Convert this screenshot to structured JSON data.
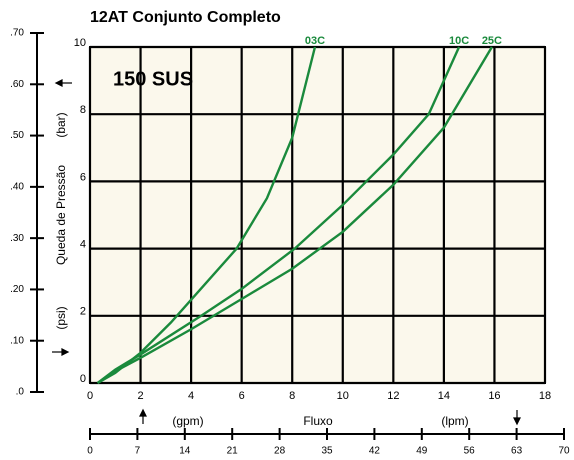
{
  "chart_data": {
    "type": "line",
    "title": "12AT Conjunto Completo",
    "annotation": "150 SUS",
    "ylabel": "Queda de Pressão",
    "y_unit_psi": "(psi)",
    "y_unit_bar": "(bar)",
    "xlabel": "Fluxo",
    "x_unit_gpm": "(gpm)",
    "x_unit_lpm": "(lpm)",
    "xlim": [
      0,
      18
    ],
    "xticks": [
      0,
      2,
      4,
      6,
      8,
      10,
      12,
      14,
      16,
      18
    ],
    "ylim": [
      0,
      10
    ],
    "yticks": [
      0,
      2,
      4,
      6,
      8,
      10
    ],
    "y2lim": [
      0,
      0.7
    ],
    "y2ticks": [
      {
        "value": 0,
        "label": ".0"
      },
      {
        "value": 0.1,
        "label": ".10"
      },
      {
        "value": 0.2,
        "label": ".20"
      },
      {
        "value": 0.3,
        "label": ".30"
      },
      {
        "value": 0.4,
        "label": ".40"
      },
      {
        "value": 0.5,
        "label": ".50"
      },
      {
        "value": 0.6,
        "label": ".60"
      },
      {
        "value": 0.7,
        "label": ".70"
      }
    ],
    "x2lim": [
      0,
      70
    ],
    "x2ticks": [
      0,
      7,
      14,
      21,
      28,
      35,
      42,
      49,
      56,
      63,
      70
    ],
    "grid": true,
    "series": [
      {
        "name": "03C",
        "color": "#1a8a3c",
        "x": [
          0.3,
          1,
          2,
          3.2,
          4.5,
          5.8,
          7,
          8,
          8.9
        ],
        "values": [
          0,
          0.3,
          0.9,
          1.8,
          2.9,
          4,
          5.5,
          7.3,
          10
        ]
      },
      {
        "name": "10C",
        "color": "#1a8a3c",
        "x": [
          0.3,
          1,
          2,
          4.4,
          6,
          8.1,
          10,
          12,
          13.4,
          14.6
        ],
        "values": [
          0,
          0.4,
          0.85,
          2,
          2.8,
          4,
          5.3,
          6.8,
          8,
          10
        ]
      },
      {
        "name": "25C",
        "color": "#1a8a3c",
        "x": [
          0.3,
          1,
          2,
          4,
          6,
          8,
          10,
          12,
          14,
          15.9
        ],
        "values": [
          0,
          0.35,
          0.75,
          1.6,
          2.5,
          3.4,
          4.5,
          5.9,
          7.6,
          10
        ]
      }
    ]
  }
}
